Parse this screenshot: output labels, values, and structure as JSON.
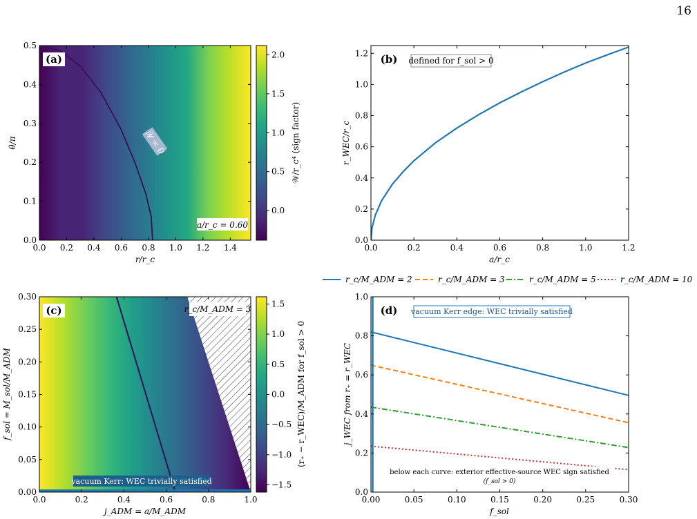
{
  "page_number": "16",
  "chart_data": [
    {
      "panel": "(a)",
      "type": "heatmap",
      "xlabel": "r/r_c",
      "ylabel": "θ/π",
      "xlim": [
        0,
        1.55
      ],
      "ylim": [
        0,
        0.5
      ],
      "x_ticks": [
        0.0,
        0.2,
        0.4,
        0.6,
        0.8,
        1.0,
        1.2,
        1.4
      ],
      "y_ticks": [
        0.0,
        0.1,
        0.2,
        0.3,
        0.4,
        0.5
      ],
      "colorbar": {
        "label": "𝒲/r_c⁴ (sign factor)",
        "range": [
          -0.38,
          2.12
        ],
        "ticks": [
          0.0,
          0.5,
          1.0,
          1.5,
          2.0
        ],
        "colormap": "viridis"
      },
      "contour": {
        "label": "𝒲 = 0",
        "color": "#3b0f57",
        "points": [
          [
            0.0,
            0.5
          ],
          [
            0.15,
            0.487
          ],
          [
            0.3,
            0.447
          ],
          [
            0.45,
            0.38
          ],
          [
            0.6,
            0.284
          ],
          [
            0.7,
            0.2
          ],
          [
            0.78,
            0.12
          ],
          [
            0.82,
            0.06
          ],
          [
            0.83,
            0.0
          ]
        ]
      },
      "annotations": [
        "(a)",
        "a/r_c = 0.60"
      ]
    },
    {
      "panel": "(b)",
      "type": "line",
      "xlabel": "a/r_c",
      "ylabel": "r_WEC/r_c",
      "xlim": [
        0,
        1.2
      ],
      "ylim": [
        0,
        1.25
      ],
      "x_ticks": [
        0.0,
        0.2,
        0.4,
        0.6,
        0.8,
        1.0,
        1.2
      ],
      "y_ticks": [
        0.0,
        0.2,
        0.4,
        0.6,
        0.8,
        1.0,
        1.2
      ],
      "series": [
        {
          "color": "#1f77b4",
          "x": [
            0,
            0.005,
            0.02,
            0.05,
            0.1,
            0.15,
            0.2,
            0.3,
            0.4,
            0.5,
            0.6,
            0.7,
            0.8,
            0.9,
            1.0,
            1.1,
            1.2
          ],
          "y": [
            0,
            0.08,
            0.16,
            0.255,
            0.36,
            0.44,
            0.51,
            0.625,
            0.72,
            0.805,
            0.882,
            0.952,
            1.018,
            1.08,
            1.138,
            1.19,
            1.24
          ]
        }
      ],
      "annotations": [
        "(b)",
        "defined for f_sol > 0"
      ]
    },
    {
      "panel": "(c)",
      "type": "heatmap",
      "xlabel": "j_ADM = a/M_ADM",
      "ylabel": "f_sol = M_sol/M_ADM",
      "xlim": [
        0,
        1.0
      ],
      "ylim": [
        0,
        0.3
      ],
      "x_ticks": [
        0.0,
        0.2,
        0.4,
        0.6,
        0.8,
        1.0
      ],
      "y_ticks": [
        0.0,
        0.05,
        0.1,
        0.15,
        0.2,
        0.25,
        0.3
      ],
      "colorbar": {
        "label": "(r₊ − r_WEC)/M_ADM for f_sol > 0",
        "range": [
          -1.62,
          1.62
        ],
        "ticks": [
          -1.5,
          -1.0,
          -0.5,
          0.0,
          0.5,
          1.0,
          1.5
        ],
        "colormap": "viridis"
      },
      "boundary_line": {
        "x": [
          0.7,
          1.0
        ],
        "y": [
          0.3,
          0.0
        ],
        "note": "hatched region beyond"
      },
      "zero_contour": {
        "x": [
          0.365,
          0.643
        ],
        "y": [
          0.3,
          0.0
        ],
        "color": "#2e1a5e"
      },
      "annotations": [
        "(c)",
        "r_c/M_ADM = 3",
        "vacuum Kerr: WEC trivially satisfied"
      ]
    },
    {
      "panel": "(d)",
      "type": "line",
      "xlabel": "f_sol",
      "ylabel": "j_WEC from r₊ = r_WEC",
      "xlim": [
        0,
        0.3
      ],
      "ylim": [
        0,
        1.0
      ],
      "x_ticks": [
        0.0,
        0.05,
        0.1,
        0.15,
        0.2,
        0.25,
        0.3
      ],
      "y_ticks": [
        0.0,
        0.2,
        0.4,
        0.6,
        0.8,
        1.0
      ],
      "legend": {
        "placement": "top"
      },
      "series": [
        {
          "name": "r_c/M_ADM = 2",
          "color": "#1f77b4",
          "style": "solid",
          "x": [
            0.0,
            0.3
          ],
          "y": [
            0.82,
            0.495
          ]
        },
        {
          "name": "r_c/M_ADM = 3",
          "color": "#ff7f0e",
          "style": "dashed",
          "x": [
            0.0,
            0.3
          ],
          "y": [
            0.65,
            0.355
          ]
        },
        {
          "name": "r_c/M_ADM = 5",
          "color": "#2ca02c",
          "style": "dashdot",
          "x": [
            0.0,
            0.3
          ],
          "y": [
            0.435,
            0.228
          ]
        },
        {
          "name": "r_c/M_ADM = 10",
          "color": "#d62728",
          "style": "dotted",
          "x": [
            0.0,
            0.3
          ],
          "y": [
            0.235,
            0.115
          ]
        }
      ],
      "vertical_edge": {
        "x": 0.002,
        "color": "#1f77b4"
      },
      "annotations": [
        "(d)",
        "vacuum Kerr edge: WEC trivially satisfied",
        "below each curve: exterior effective-source WEC sign satisfied",
        "(f_sol > 0)"
      ]
    }
  ]
}
